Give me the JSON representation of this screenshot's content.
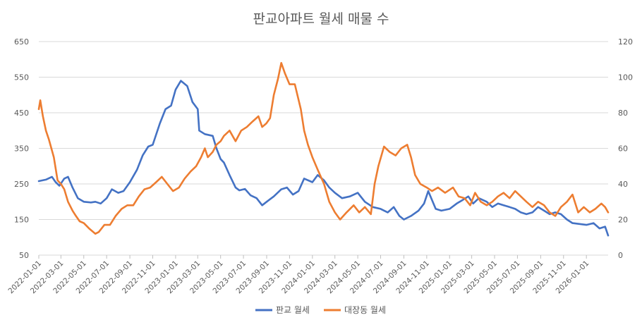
{
  "chart_data": {
    "type": "line",
    "title": "판교아파트 월세 매물 수",
    "y_left": {
      "min": 50,
      "max": 650,
      "ticks": [
        50,
        150,
        250,
        350,
        450,
        550,
        650
      ]
    },
    "y_right": {
      "min": 0,
      "max": 120,
      "ticks": [
        0,
        20,
        40,
        60,
        80,
        100,
        120
      ]
    },
    "x_range": [
      "2022-01-01",
      "2026-02-28"
    ],
    "x_ticks": [
      "2022-01-01",
      "2022-03-01",
      "2022-05-01",
      "2022-07-01",
      "2022-09-01",
      "2022-11-01",
      "2023-01-01",
      "2023-03-01",
      "2023-05-01",
      "2023-07-01",
      "2023-09-01",
      "2023-11-01",
      "2024-01-01",
      "2024-03-01",
      "2024-05-01",
      "2024-07-01",
      "2024-09-01",
      "2024-11-01",
      "2025-01-01",
      "2025-03-01",
      "2025-05-01",
      "2025-07-01",
      "2025-09-01",
      "2025-11-01",
      "2026-01-01"
    ],
    "grid": "horizontal",
    "legend_position": "bottom",
    "series": [
      {
        "name": "판교 월세",
        "axis": "left",
        "color": "#4472C4",
        "points": [
          [
            "2022-01-01",
            258
          ],
          [
            "2022-01-20",
            262
          ],
          [
            "2022-02-05",
            270
          ],
          [
            "2022-02-15",
            255
          ],
          [
            "2022-02-25",
            245
          ],
          [
            "2022-03-10",
            265
          ],
          [
            "2022-03-20",
            270
          ],
          [
            "2022-04-01",
            240
          ],
          [
            "2022-04-15",
            210
          ],
          [
            "2022-05-01",
            200
          ],
          [
            "2022-05-20",
            198
          ],
          [
            "2022-06-01",
            200
          ],
          [
            "2022-06-15",
            195
          ],
          [
            "2022-07-01",
            210
          ],
          [
            "2022-07-15",
            235
          ],
          [
            "2022-08-01",
            225
          ],
          [
            "2022-08-15",
            230
          ],
          [
            "2022-09-01",
            255
          ],
          [
            "2022-09-20",
            290
          ],
          [
            "2022-10-05",
            330
          ],
          [
            "2022-10-20",
            355
          ],
          [
            "2022-11-01",
            360
          ],
          [
            "2022-11-20",
            420
          ],
          [
            "2022-12-05",
            460
          ],
          [
            "2022-12-20",
            470
          ],
          [
            "2023-01-01",
            515
          ],
          [
            "2023-01-15",
            540
          ],
          [
            "2023-02-01",
            525
          ],
          [
            "2023-02-15",
            480
          ],
          [
            "2023-03-01",
            460
          ],
          [
            "2023-03-05",
            400
          ],
          [
            "2023-03-20",
            390
          ],
          [
            "2023-04-10",
            385
          ],
          [
            "2023-04-20",
            350
          ],
          [
            "2023-05-01",
            320
          ],
          [
            "2023-05-10",
            310
          ],
          [
            "2023-05-25",
            275
          ],
          [
            "2023-06-10",
            240
          ],
          [
            "2023-06-20",
            232
          ],
          [
            "2023-07-05",
            236
          ],
          [
            "2023-07-20",
            218
          ],
          [
            "2023-08-05",
            210
          ],
          [
            "2023-08-20",
            190
          ],
          [
            "2023-09-01",
            200
          ],
          [
            "2023-09-20",
            215
          ],
          [
            "2023-10-10",
            235
          ],
          [
            "2023-10-25",
            240
          ],
          [
            "2023-11-10",
            220
          ],
          [
            "2023-11-25",
            230
          ],
          [
            "2023-12-10",
            265
          ],
          [
            "2024-01-01",
            255
          ],
          [
            "2024-01-15",
            275
          ],
          [
            "2024-02-01",
            260
          ],
          [
            "2024-02-15",
            240
          ],
          [
            "2024-03-01",
            225
          ],
          [
            "2024-03-20",
            210
          ],
          [
            "2024-04-10",
            215
          ],
          [
            "2024-05-01",
            225
          ],
          [
            "2024-05-20",
            200
          ],
          [
            "2024-06-10",
            185
          ],
          [
            "2024-07-01",
            180
          ],
          [
            "2024-07-20",
            170
          ],
          [
            "2024-08-05",
            185
          ],
          [
            "2024-08-20",
            160
          ],
          [
            "2024-09-01",
            150
          ],
          [
            "2024-09-20",
            160
          ],
          [
            "2024-10-10",
            175
          ],
          [
            "2024-10-25",
            195
          ],
          [
            "2024-11-05",
            230
          ],
          [
            "2024-11-15",
            205
          ],
          [
            "2024-11-25",
            180
          ],
          [
            "2024-12-10",
            175
          ],
          [
            "2025-01-01",
            180
          ],
          [
            "2025-01-20",
            195
          ],
          [
            "2025-02-05",
            205
          ],
          [
            "2025-02-20",
            215
          ],
          [
            "2025-03-05",
            195
          ],
          [
            "2025-03-20",
            210
          ],
          [
            "2025-04-10",
            200
          ],
          [
            "2025-04-25",
            185
          ],
          [
            "2025-05-10",
            195
          ],
          [
            "2025-05-25",
            190
          ],
          [
            "2025-06-10",
            185
          ],
          [
            "2025-06-25",
            180
          ],
          [
            "2025-07-10",
            170
          ],
          [
            "2025-07-25",
            165
          ],
          [
            "2025-08-10",
            170
          ],
          [
            "2025-08-25",
            185
          ],
          [
            "2025-09-10",
            175
          ],
          [
            "2025-09-25",
            165
          ],
          [
            "2025-10-10",
            170
          ],
          [
            "2025-10-25",
            165
          ],
          [
            "2025-11-10",
            150
          ],
          [
            "2025-11-25",
            140
          ],
          [
            "2026-01-01",
            135
          ],
          [
            "2026-01-20",
            140
          ],
          [
            "2026-02-05",
            125
          ],
          [
            "2026-02-20",
            130
          ],
          [
            "2026-02-28",
            105
          ]
        ]
      },
      {
        "name": "대장동 월세",
        "axis": "right",
        "color": "#ED7D31",
        "points": [
          [
            "2022-01-01",
            82
          ],
          [
            "2022-01-05",
            87
          ],
          [
            "2022-01-12",
            78
          ],
          [
            "2022-01-20",
            70
          ],
          [
            "2022-01-28",
            65
          ],
          [
            "2022-02-10",
            55
          ],
          [
            "2022-02-20",
            42
          ],
          [
            "2022-03-01",
            40
          ],
          [
            "2022-03-10",
            37
          ],
          [
            "2022-03-20",
            30
          ],
          [
            "2022-04-01",
            25
          ],
          [
            "2022-04-10",
            22
          ],
          [
            "2022-04-20",
            19
          ],
          [
            "2022-05-01",
            18
          ],
          [
            "2022-05-15",
            15
          ],
          [
            "2022-06-01",
            12
          ],
          [
            "2022-06-10",
            13
          ],
          [
            "2022-06-25",
            17
          ],
          [
            "2022-07-10",
            17
          ],
          [
            "2022-07-25",
            22
          ],
          [
            "2022-08-10",
            26
          ],
          [
            "2022-08-25",
            28
          ],
          [
            "2022-09-10",
            28
          ],
          [
            "2022-09-25",
            33
          ],
          [
            "2022-10-10",
            37
          ],
          [
            "2022-10-25",
            38
          ],
          [
            "2022-11-10",
            41
          ],
          [
            "2022-11-25",
            44
          ],
          [
            "2022-12-10",
            40
          ],
          [
            "2022-12-25",
            36
          ],
          [
            "2023-01-10",
            38
          ],
          [
            "2023-01-25",
            43
          ],
          [
            "2023-02-10",
            47
          ],
          [
            "2023-02-25",
            50
          ],
          [
            "2023-03-10",
            55
          ],
          [
            "2023-03-20",
            60
          ],
          [
            "2023-03-28",
            55
          ],
          [
            "2023-04-10",
            58
          ],
          [
            "2023-04-20",
            62
          ],
          [
            "2023-05-01",
            64
          ],
          [
            "2023-05-10",
            67
          ],
          [
            "2023-05-25",
            70
          ],
          [
            "2023-06-10",
            64
          ],
          [
            "2023-06-25",
            70
          ],
          [
            "2023-07-10",
            72
          ],
          [
            "2023-07-25",
            75
          ],
          [
            "2023-08-10",
            78
          ],
          [
            "2023-08-20",
            72
          ],
          [
            "2023-08-31",
            74
          ],
          [
            "2023-09-10",
            77
          ],
          [
            "2023-09-20",
            90
          ],
          [
            "2023-10-01",
            99
          ],
          [
            "2023-10-10",
            108
          ],
          [
            "2023-10-20",
            102
          ],
          [
            "2023-11-01",
            96
          ],
          [
            "2023-11-15",
            96
          ],
          [
            "2023-12-01",
            82
          ],
          [
            "2023-12-10",
            70
          ],
          [
            "2023-12-20",
            62
          ],
          [
            "2024-01-01",
            55
          ],
          [
            "2024-01-15",
            48
          ],
          [
            "2024-02-01",
            40
          ],
          [
            "2024-02-15",
            30
          ],
          [
            "2024-03-01",
            24
          ],
          [
            "2024-03-15",
            20
          ],
          [
            "2024-04-01",
            24
          ],
          [
            "2024-04-20",
            28
          ],
          [
            "2024-05-05",
            24
          ],
          [
            "2024-05-20",
            27
          ],
          [
            "2024-06-05",
            23
          ],
          [
            "2024-06-15",
            40
          ],
          [
            "2024-06-25",
            50
          ],
          [
            "2024-07-10",
            61
          ],
          [
            "2024-07-25",
            58
          ],
          [
            "2024-08-10",
            56
          ],
          [
            "2024-08-25",
            60
          ],
          [
            "2024-09-10",
            62
          ],
          [
            "2024-09-20",
            55
          ],
          [
            "2024-10-01",
            45
          ],
          [
            "2024-10-15",
            40
          ],
          [
            "2024-11-01",
            38
          ],
          [
            "2024-11-15",
            36
          ],
          [
            "2024-12-01",
            38
          ],
          [
            "2024-12-20",
            35
          ],
          [
            "2025-01-10",
            38
          ],
          [
            "2025-01-25",
            33
          ],
          [
            "2025-02-10",
            32
          ],
          [
            "2025-02-25",
            28
          ],
          [
            "2025-03-10",
            35
          ],
          [
            "2025-03-25",
            30
          ],
          [
            "2025-04-10",
            28
          ],
          [
            "2025-04-25",
            30
          ],
          [
            "2025-05-10",
            33
          ],
          [
            "2025-05-25",
            35
          ],
          [
            "2025-06-10",
            32
          ],
          [
            "2025-06-25",
            36
          ],
          [
            "2025-07-10",
            33
          ],
          [
            "2025-07-25",
            30
          ],
          [
            "2025-08-10",
            27
          ],
          [
            "2025-08-25",
            30
          ],
          [
            "2025-09-10",
            28
          ],
          [
            "2025-09-25",
            24
          ],
          [
            "2025-10-10",
            22
          ],
          [
            "2025-10-25",
            27
          ],
          [
            "2025-11-10",
            30
          ],
          [
            "2025-11-25",
            34
          ],
          [
            "2025-12-10",
            24
          ],
          [
            "2025-12-25",
            27
          ],
          [
            "2026-01-10",
            24
          ],
          [
            "2026-01-25",
            26
          ],
          [
            "2026-02-10",
            29
          ],
          [
            "2026-02-20",
            27
          ],
          [
            "2026-02-28",
            24
          ]
        ]
      }
    ]
  }
}
